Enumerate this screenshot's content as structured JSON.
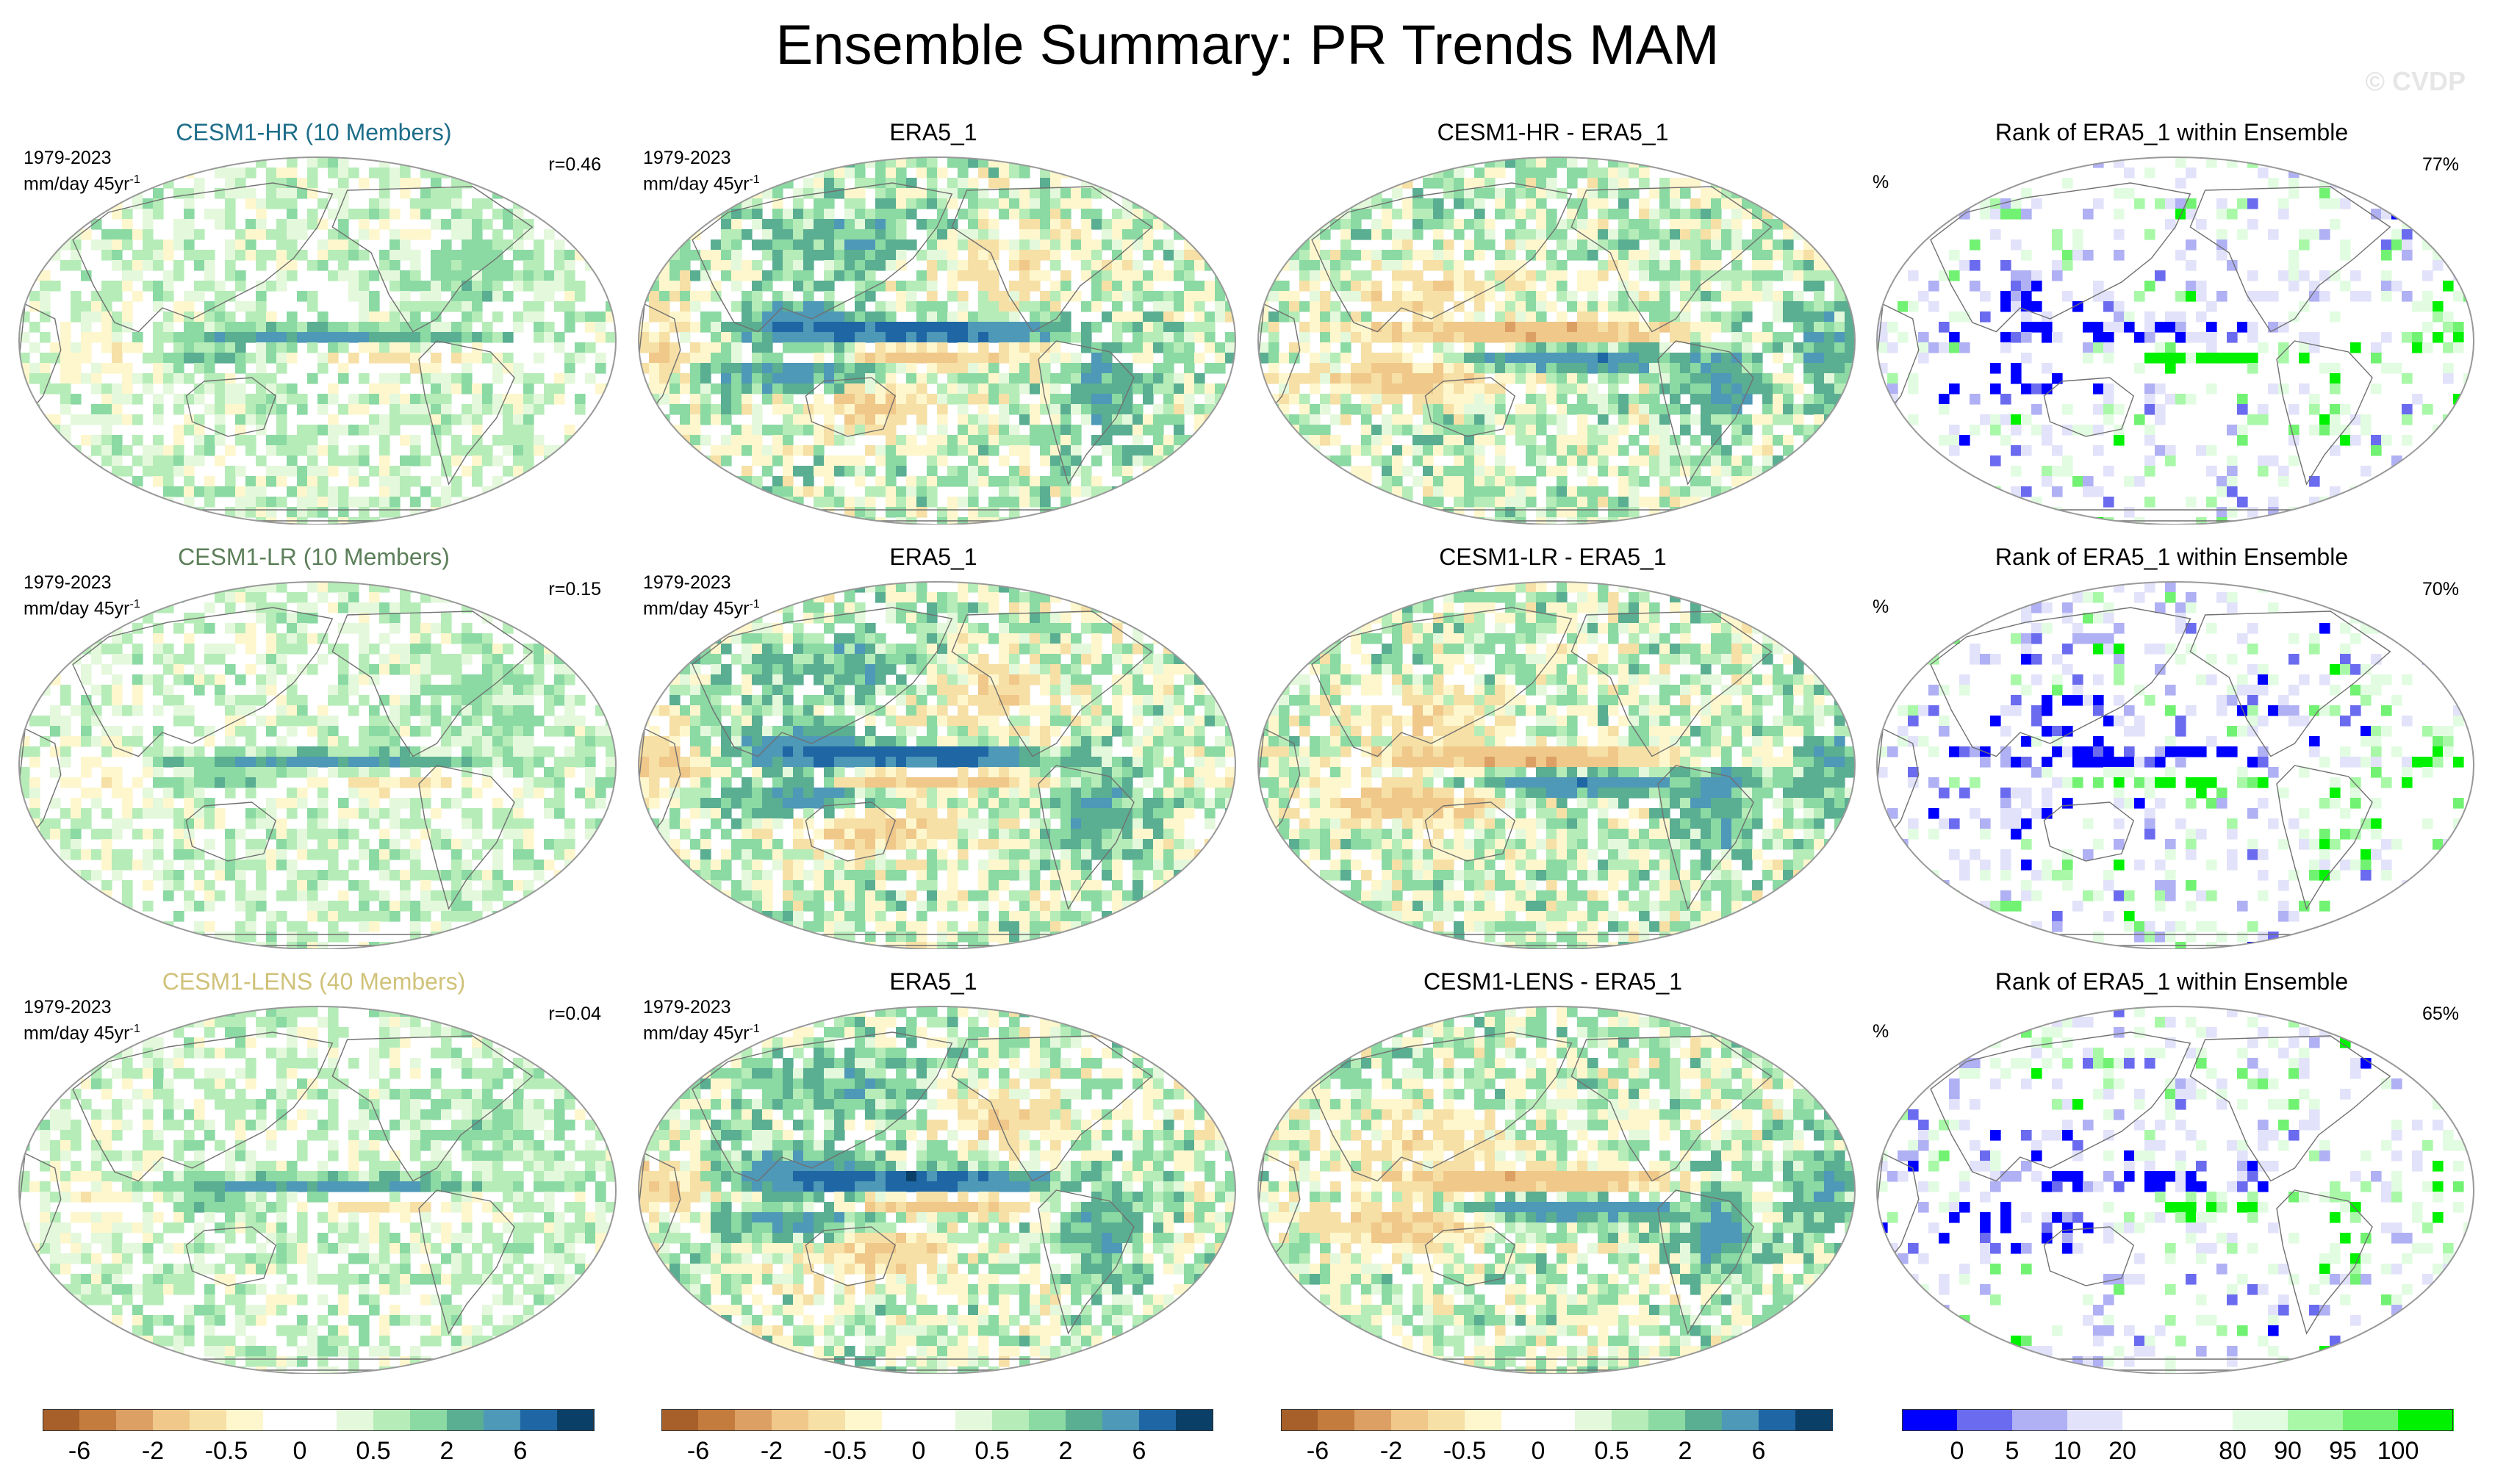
{
  "title": "Ensemble Summary: PR Trends MAM",
  "watermark": "© CVDP",
  "period": "1979-2023",
  "units_main": "mm/day 45yr",
  "units_exp": "-1",
  "rank_units": "%",
  "colors": {
    "diverging": [
      "#a8602a",
      "#c47c3e",
      "#dca064",
      "#f0c88a",
      "#f6e0a6",
      "#fef7cd",
      "#ffffff",
      "#ffffff",
      "#e4f8dc",
      "#b6ecb8",
      "#8bd9a3",
      "#5aae91",
      "#4e98b8",
      "#1e67a4",
      "#0a3f68"
    ],
    "rank": [
      "#0000ff",
      "#6b6bf0",
      "#b0b0f4",
      "#e2e2fa",
      "#ffffff",
      "#ffffff",
      "#e2fce2",
      "#a8f8a8",
      "#72f272",
      "#00f200"
    ],
    "land_line": "#707070",
    "title_hr": "#1e6e8a",
    "title_lr": "#5c7f5a",
    "title_lens": "#d0c27a"
  },
  "colorbar": {
    "diverging_labels": [
      {
        "text": "-6",
        "boundary": 1
      },
      {
        "text": "-2",
        "boundary": 3
      },
      {
        "text": "-0.5",
        "boundary": 5
      },
      {
        "text": "0",
        "boundary": 7
      },
      {
        "text": "0.5",
        "boundary": 9
      },
      {
        "text": "2",
        "boundary": 11
      },
      {
        "text": "6",
        "boundary": 13
      }
    ],
    "rank_labels": [
      {
        "text": "0",
        "boundary": 1
      },
      {
        "text": "5",
        "boundary": 2
      },
      {
        "text": "10",
        "boundary": 3
      },
      {
        "text": "20",
        "boundary": 4
      },
      {
        "text": "80",
        "boundary": 6
      },
      {
        "text": "90",
        "boundary": 7
      },
      {
        "text": "95",
        "boundary": 8
      },
      {
        "text": "100",
        "boundary": 9
      }
    ]
  },
  "rows": [
    {
      "ensemble": {
        "title": "CESM1-HR (10 Members)",
        "r": "r=0.46",
        "style": "weak",
        "seed": 11
      },
      "obs": {
        "title": "ERA5_1",
        "style": "strong",
        "seed": 42
      },
      "diff": {
        "title": "CESM1-HR - ERA5_1",
        "style": "diff",
        "seed": 73
      },
      "rank": {
        "title": "Rank of ERA5_1 within Ensemble",
        "percent": "77%",
        "seed": 5
      }
    },
    {
      "ensemble": {
        "title": "CESM1-LR (10 Members)",
        "r": "r=0.15",
        "style": "weak",
        "seed": 23
      },
      "obs": {
        "title": "ERA5_1",
        "style": "strong",
        "seed": 43
      },
      "diff": {
        "title": "CESM1-LR - ERA5_1",
        "style": "diff",
        "seed": 81
      },
      "rank": {
        "title": "Rank of ERA5_1 within Ensemble",
        "percent": "70%",
        "seed": 17
      }
    },
    {
      "ensemble": {
        "title": "CESM1-LENS (40 Members)",
        "r": "r=0.04",
        "style": "weak",
        "seed": 37
      },
      "obs": {
        "title": "ERA5_1",
        "style": "strong",
        "seed": 44
      },
      "diff": {
        "title": "CESM1-LENS - ERA5_1",
        "style": "diff",
        "seed": 91
      },
      "rank": {
        "title": "Rank of ERA5_1 within Ensemble",
        "percent": "65%",
        "seed": 29
      }
    }
  ],
  "chart_data": {
    "type": "heatmap",
    "projection": "Robinson (global, Pacific-centered)",
    "title": "Ensemble Summary: PR Trends MAM",
    "variable": "Precipitation trend",
    "season": "MAM",
    "period": "1979-2023",
    "units": "mm/day 45yr-1",
    "levels_trend": [
      -6,
      -4,
      -2,
      -1,
      -0.5,
      -0.2,
      0,
      0.2,
      0.5,
      1,
      2,
      4,
      6
    ],
    "levels_rank": [
      0,
      5,
      10,
      20,
      80,
      90,
      95,
      100
    ],
    "panels": [
      {
        "row": 1,
        "col": 1,
        "name": "CESM1-HR (10 Members)",
        "pattern_corr": 0.46
      },
      {
        "row": 1,
        "col": 2,
        "name": "ERA5_1"
      },
      {
        "row": 1,
        "col": 3,
        "name": "CESM1-HR - ERA5_1"
      },
      {
        "row": 1,
        "col": 4,
        "name": "Rank of ERA5_1 within Ensemble",
        "percent": 77
      },
      {
        "row": 2,
        "col": 1,
        "name": "CESM1-LR (10 Members)",
        "pattern_corr": 0.15
      },
      {
        "row": 2,
        "col": 2,
        "name": "ERA5_1"
      },
      {
        "row": 2,
        "col": 3,
        "name": "CESM1-LR - ERA5_1"
      },
      {
        "row": 2,
        "col": 4,
        "name": "Rank of ERA5_1 within Ensemble",
        "percent": 70
      },
      {
        "row": 3,
        "col": 1,
        "name": "CESM1-LENS (40 Members)",
        "pattern_corr": 0.04
      },
      {
        "row": 3,
        "col": 2,
        "name": "ERA5_1"
      },
      {
        "row": 3,
        "col": 3,
        "name": "CESM1-LENS - ERA5_1"
      },
      {
        "row": 3,
        "col": 4,
        "name": "Rank of ERA5_1 within Ensemble",
        "percent": 65
      }
    ]
  }
}
